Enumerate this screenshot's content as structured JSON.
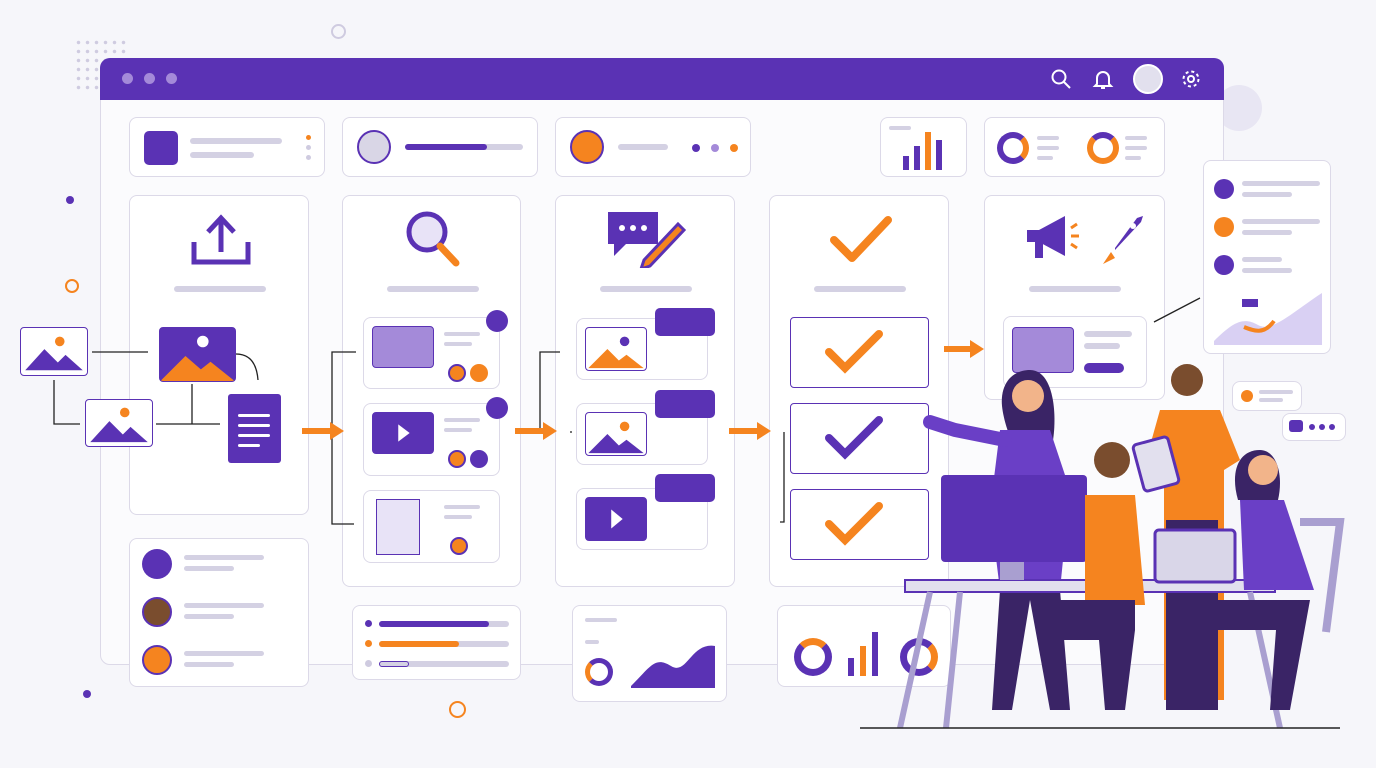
{
  "colors": {
    "primary": "#5a32b4",
    "accent": "#f5841f",
    "border": "#dcd9e8",
    "placeholder": "#d4d1e3",
    "background": "#f6f6fa"
  },
  "header": {
    "icons": [
      "search-icon",
      "bell-icon",
      "avatar",
      "gear-icon"
    ],
    "window_dots": 3
  },
  "stages": [
    {
      "icon": "upload-icon"
    },
    {
      "icon": "magnifier-icon"
    },
    {
      "icon": "chat-pencil-icon"
    },
    {
      "icon": "checkmark-icon"
    },
    {
      "icon": "megaphone-rocket-icon"
    }
  ],
  "review_checks": {
    "checked": 3
  },
  "progress_bars": [
    0.85,
    0.55,
    0.2
  ],
  "people_count": 4
}
